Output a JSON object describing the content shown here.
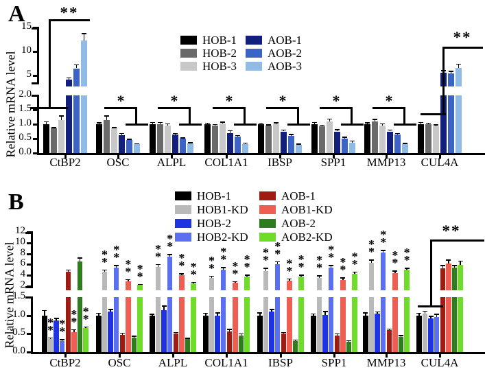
{
  "chart_data": [
    {
      "panel": "A",
      "type": "bar",
      "ylabel": "Relative mRNA level",
      "categories": [
        "CtBP2",
        "OSC",
        "ALPL",
        "COL1A1",
        "IBSP",
        "SPP1",
        "MMP13",
        "CUL4A"
      ],
      "axis": {
        "lower_ticks": [
          "0.0",
          "0.5",
          "1.0",
          "1.5",
          "2.0"
        ],
        "upper_ticks": [
          "5",
          "10",
          "15"
        ],
        "lower_max": 2.0,
        "upper_max": 15,
        "broken_axis": true
      },
      "legend_position": "top-center",
      "series": [
        {
          "name": "HOB-1",
          "color": "#000000",
          "values": [
            1.0,
            1.0,
            1.0,
            1.0,
            1.0,
            1.0,
            1.0,
            1.0
          ],
          "errors": [
            0.1,
            0.06,
            0.08,
            0.05,
            0.05,
            0.08,
            0.07,
            0.08
          ]
        },
        {
          "name": "HOB-2",
          "color": "#6a6a6a",
          "values": [
            0.85,
            1.15,
            1.0,
            0.96,
            0.95,
            0.93,
            1.1,
            1.0
          ],
          "errors": [
            0.05,
            0.15,
            0.08,
            0.05,
            0.05,
            0.05,
            0.08,
            0.05
          ]
        },
        {
          "name": "HOB-3",
          "color": "#c8c8c8",
          "values": [
            1.15,
            0.85,
            0.95,
            1.02,
            1.0,
            1.1,
            0.95,
            0.93
          ],
          "errors": [
            0.15,
            0.05,
            0.08,
            0.07,
            0.06,
            0.1,
            0.08,
            0.07
          ]
        },
        {
          "name": "AOB-1",
          "color": "#121f7c",
          "values": [
            4.2,
            0.62,
            0.65,
            0.7,
            0.75,
            0.75,
            0.75,
            5.6
          ],
          "errors": [
            0.4,
            0.08,
            0.05,
            0.09,
            0.07,
            0.08,
            0.07,
            0.5
          ]
        },
        {
          "name": "AOB-2",
          "color": "#3c63c6",
          "values": [
            6.5,
            0.45,
            0.5,
            0.57,
            0.6,
            0.5,
            0.65,
            5.5
          ],
          "errors": [
            0.8,
            0.05,
            0.04,
            0.05,
            0.06,
            0.06,
            0.05,
            0.5
          ]
        },
        {
          "name": "AOB-3",
          "color": "#90bbe7",
          "values": [
            12.3,
            0.3,
            0.33,
            0.32,
            0.28,
            0.35,
            0.3,
            6.6
          ],
          "errors": [
            1.5,
            0.04,
            0.05,
            0.04,
            0.05,
            0.08,
            0.05,
            0.9
          ]
        }
      ],
      "significance": [
        {
          "category": "CtBP2",
          "label": "**",
          "type": "rise"
        },
        {
          "category": "OSC",
          "label": "*",
          "type": "step"
        },
        {
          "category": "ALPL",
          "label": "*",
          "type": "step"
        },
        {
          "category": "COL1A1",
          "label": "*",
          "type": "step"
        },
        {
          "category": "IBSP",
          "label": "*",
          "type": "step"
        },
        {
          "category": "SPP1",
          "label": "*",
          "type": "step"
        },
        {
          "category": "MMP13",
          "label": "*",
          "type": "step"
        },
        {
          "category": "CUL4A",
          "label": "**",
          "type": "rise"
        }
      ]
    },
    {
      "panel": "B",
      "type": "bar",
      "ylabel": "Relative mRNA level",
      "categories": [
        "CtBP2",
        "OSC",
        "ALPL",
        "COL1A1",
        "IBSP",
        "SPP1",
        "MMP13",
        "CUL4A"
      ],
      "axis": {
        "lower_ticks": [
          "0.0",
          "0.5",
          "1.0",
          "1.5"
        ],
        "upper_ticks": [
          "2",
          "4",
          "6",
          "8",
          "10",
          "12"
        ],
        "lower_max": 1.5,
        "upper_max": 12,
        "broken_axis": true
      },
      "legend_position": "top-center",
      "series": [
        {
          "name": "HOB-1",
          "color": "#000000",
          "values": [
            1.0,
            1.0,
            1.0,
            1.0,
            1.0,
            1.0,
            1.0,
            1.0
          ],
          "errors": [
            0.15,
            0.07,
            0.05,
            0.07,
            0.08,
            0.06,
            0.08,
            0.07
          ]
        },
        {
          "name": "HOB1-KD",
          "color": "#b9b9b9",
          "values": [
            0.35,
            4.6,
            5.5,
            3.5,
            4.8,
            3.5,
            6.3,
            1.05
          ],
          "errors": [
            0.05,
            0.5,
            0.6,
            0.4,
            0.6,
            0.5,
            0.6,
            0.08
          ],
          "sig": [
            "**",
            "**",
            "**",
            "**",
            "**",
            "**",
            "**",
            ""
          ]
        },
        {
          "name": "HOB-2",
          "color": "#1d33e4",
          "values": [
            0.87,
            1.1,
            1.15,
            1.0,
            1.1,
            1.02,
            1.05,
            0.92
          ],
          "errors": [
            0.06,
            0.08,
            0.12,
            0.08,
            0.08,
            0.1,
            0.06,
            0.07
          ]
        },
        {
          "name": "HOB2-KD",
          "color": "#5b70f0",
          "values": [
            0.3,
            5.4,
            7.4,
            5.0,
            6.0,
            5.4,
            8.2,
            0.95
          ],
          "errors": [
            0.05,
            0.5,
            0.5,
            0.5,
            0.6,
            0.5,
            0.5,
            0.1
          ],
          "sig": [
            "**",
            "**",
            "**",
            "**",
            "**",
            "**",
            "**",
            ""
          ]
        },
        {
          "name": "AOB-1",
          "color": "#9e1c12",
          "values": [
            4.6,
            0.47,
            0.5,
            0.57,
            0.5,
            0.45,
            0.6,
            5.3
          ],
          "errors": [
            0.5,
            0.06,
            0.05,
            0.06,
            0.05,
            0.06,
            0.04,
            0.6
          ]
        },
        {
          "name": "AOB1-KD",
          "color": "#ee5e53",
          "values": [
            0.55,
            2.9,
            4.0,
            2.6,
            3.0,
            3.2,
            4.4,
            6.2
          ],
          "errors": [
            0.07,
            0.4,
            0.4,
            0.3,
            0.4,
            0.4,
            0.5,
            0.7
          ],
          "sig": [
            "**",
            "**",
            "**",
            "**",
            "**",
            "**",
            "**",
            ""
          ]
        },
        {
          "name": "AOB-2",
          "color": "#2d7c1d",
          "values": [
            6.5,
            0.4,
            0.35,
            0.45,
            0.3,
            0.28,
            0.42,
            5.4
          ],
          "errors": [
            0.8,
            0.05,
            0.04,
            0.06,
            0.04,
            0.04,
            0.04,
            0.5
          ]
        },
        {
          "name": "AOB2-KD",
          "color": "#6edc28",
          "values": [
            0.65,
            2.2,
            2.5,
            3.8,
            3.8,
            4.3,
            5.0,
            5.9
          ],
          "errors": [
            0.05,
            0.2,
            0.3,
            0.3,
            0.3,
            0.4,
            0.4,
            0.8
          ],
          "sig": [
            "**",
            "**",
            "**",
            "**",
            "**",
            "**",
            "**",
            ""
          ]
        }
      ],
      "significance": [
        {
          "category": "CUL4A",
          "label": "**",
          "type": "rise"
        }
      ]
    }
  ]
}
